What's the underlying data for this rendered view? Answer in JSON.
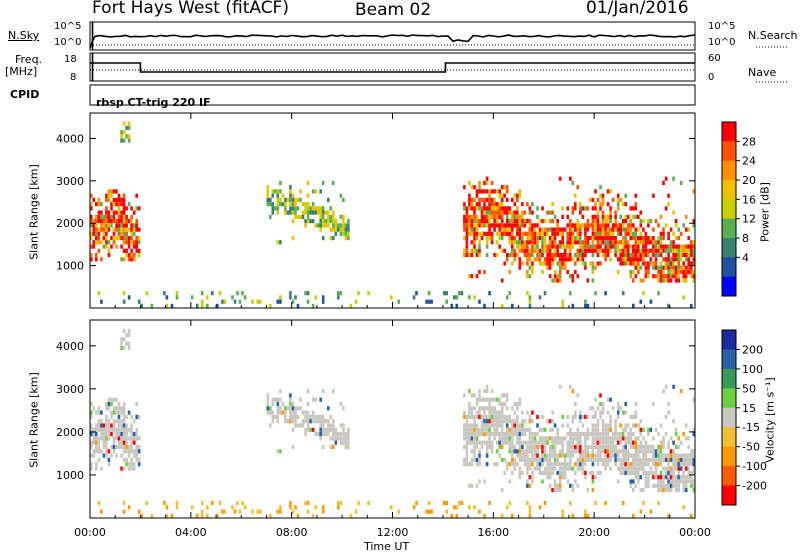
{
  "header": {
    "station": "Fort Hays West (fitACF)",
    "beam": "Beam 02",
    "date": "01/Jan/2016"
  },
  "top_panels": {
    "nsky_label": "N.Sky",
    "nsky_ticks": [
      "10^5",
      "10^0"
    ],
    "nsearch_label": "N.Search",
    "nsearch_ticks": [
      "10^5",
      "10^0"
    ],
    "freq_label": "Freq.",
    "freq_unit": "[MHz]",
    "freq_ticks": [
      "18",
      "8"
    ],
    "nave_label": "Nave",
    "nave_ticks": [
      "60",
      "0"
    ],
    "cpid_label": "CPID",
    "cpid_text": "rbsp CT-trig 220 IF"
  },
  "chart_data": [
    {
      "type": "heatmap",
      "panel": "power",
      "ylabel": "Slant Range [km]",
      "ylim": [
        0,
        4600
      ],
      "yticks": [
        1000,
        2000,
        3000,
        4000
      ],
      "xlim_hours": [
        0,
        24
      ],
      "xticks": [
        "00:00",
        "04:00",
        "08:00",
        "12:00",
        "16:00",
        "20:00",
        "00:00"
      ],
      "colorbar": {
        "label": "Power [dB]",
        "ticks": [
          "28",
          "24",
          "20",
          "16",
          "12",
          "8",
          "4"
        ],
        "colors": [
          "#ff0000",
          "#ff5000",
          "#ff9000",
          "#f0c000",
          "#c8d000",
          "#58b050",
          "#3a8070",
          "#2050a0",
          "#0000ff"
        ]
      },
      "echo_regions": [
        {
          "t": [
            0.0,
            2.0
          ],
          "r": [
            1100,
            2800
          ],
          "level": "high"
        },
        {
          "t": [
            1.2,
            1.6
          ],
          "r": [
            3900,
            4400
          ],
          "level": "mid"
        },
        {
          "t": [
            7.0,
            10.2
          ],
          "r": [
            1500,
            3000
          ],
          "level": "mid"
        },
        {
          "t": [
            14.8,
            24.0
          ],
          "r": [
            600,
            3100
          ],
          "level": "high"
        },
        {
          "t": [
            0.0,
            24.0
          ],
          "r": [
            0,
            350
          ],
          "level": "low"
        }
      ]
    },
    {
      "type": "heatmap",
      "panel": "velocity",
      "ylabel": "Slant Range [km]",
      "ylim": [
        0,
        4600
      ],
      "yticks": [
        1000,
        2000,
        3000,
        4000
      ],
      "xlim_hours": [
        0,
        24
      ],
      "xticks": [
        "00:00",
        "04:00",
        "08:00",
        "12:00",
        "16:00",
        "20:00",
        "00:00"
      ],
      "xlabel": "Time UT",
      "colorbar": {
        "label": "Velocity [m s⁻¹]",
        "ticks": [
          "200",
          "100",
          "50",
          "15",
          "-15",
          "-50",
          "-100",
          "-200"
        ],
        "colors": [
          "#1a2aa0",
          "#2a60a8",
          "#3a9a5a",
          "#6ad040",
          "#c8c8c0",
          "#f0c030",
          "#ff9a00",
          "#ff5a00",
          "#ff0000"
        ]
      }
    }
  ]
}
